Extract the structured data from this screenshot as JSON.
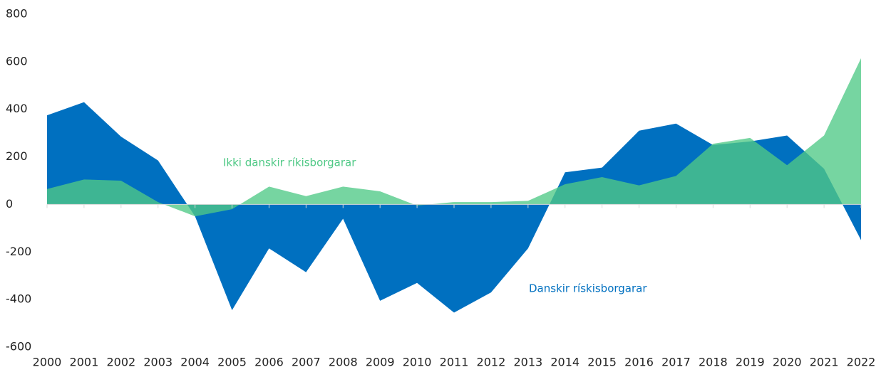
{
  "chart_data": {
    "type": "area",
    "categories": [
      "2000",
      "2001",
      "2002",
      "2003",
      "2004",
      "2005",
      "2006",
      "2007",
      "2008",
      "2009",
      "2010",
      "2011",
      "2012",
      "2013",
      "2014",
      "2015",
      "2016",
      "2017",
      "2018",
      "2019",
      "2020",
      "2021",
      "2022"
    ],
    "series": [
      {
        "name": "Danskir rískisborgarar",
        "color": "#0070c0",
        "values": [
          375,
          430,
          285,
          185,
          -50,
          -445,
          -185,
          -285,
          -60,
          -405,
          -330,
          -455,
          -370,
          -185,
          135,
          155,
          310,
          340,
          250,
          265,
          290,
          150,
          -150
        ]
      },
      {
        "name": "Ikki danskir ríkisborgarar",
        "color": "#50c986",
        "values": [
          65,
          105,
          100,
          10,
          -50,
          -20,
          75,
          35,
          75,
          55,
          -5,
          10,
          10,
          15,
          85,
          115,
          80,
          120,
          255,
          280,
          165,
          290,
          615
        ]
      }
    ],
    "ylim": [
      -600,
      800
    ],
    "yticks": [
      -600,
      -400,
      -200,
      0,
      200,
      400,
      600,
      800
    ],
    "grid": false
  }
}
